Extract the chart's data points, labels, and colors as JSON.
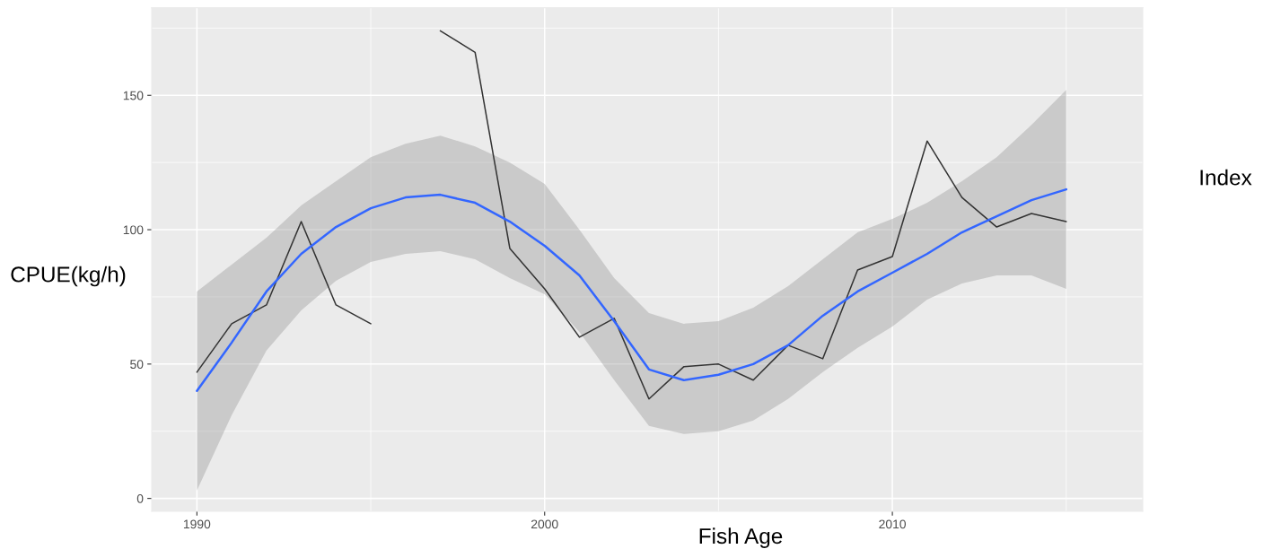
{
  "chart_data": {
    "type": "line",
    "xlabel": "Fish Age",
    "ylabel": "CPUE(kg/h)",
    "annotations": [
      "Index"
    ],
    "xlim": [
      1988.7,
      2017.2
    ],
    "ylim": [
      -4.8,
      182.6
    ],
    "xticks": [
      1990,
      2000,
      2010
    ],
    "yticks": [
      0,
      50,
      100,
      150
    ],
    "grid": true,
    "line_style": "solid",
    "series": [
      {
        "color": "#333333",
        "x": [
          1990,
          1991,
          1992,
          1993,
          1994,
          1995,
          1996,
          1997,
          1998,
          1999,
          2000,
          2001,
          2002,
          2003,
          2004,
          2005,
          2006,
          2007,
          2008,
          2009,
          2010,
          2011,
          2012,
          2013,
          2014,
          2015
        ],
        "values": [
          47,
          65,
          72,
          103,
          72,
          65,
          null,
          174,
          166,
          93,
          78,
          60,
          67,
          37,
          49,
          50,
          44,
          57,
          52,
          85,
          90,
          133,
          112,
          101,
          106,
          103
        ]
      },
      {
        "color": "#3366ff",
        "x": [
          1990,
          1991,
          1992,
          1993,
          1994,
          1995,
          1996,
          1997,
          1998,
          1999,
          2000,
          2001,
          2002,
          2003,
          2004,
          2005,
          2006,
          2007,
          2008,
          2009,
          2010,
          2011,
          2012,
          2013,
          2014,
          2015
        ],
        "values": [
          40,
          58,
          77,
          91,
          101,
          108,
          112,
          113,
          110,
          103,
          94,
          83,
          66,
          48,
          44,
          46,
          50,
          57,
          68,
          77,
          84,
          91,
          99,
          105,
          111,
          115
        ],
        "lower": [
          3,
          31,
          55,
          70,
          81,
          88,
          91,
          92,
          89,
          82,
          76,
          62,
          44,
          27,
          24,
          25,
          29,
          37,
          47,
          56,
          64,
          74,
          80,
          83,
          83,
          78
        ],
        "upper": [
          77,
          87,
          97,
          109,
          118,
          127,
          132,
          135,
          131,
          125,
          117,
          100,
          82,
          69,
          65,
          66,
          71,
          79,
          89,
          99,
          104,
          110,
          118,
          127,
          139,
          152
        ]
      }
    ]
  }
}
